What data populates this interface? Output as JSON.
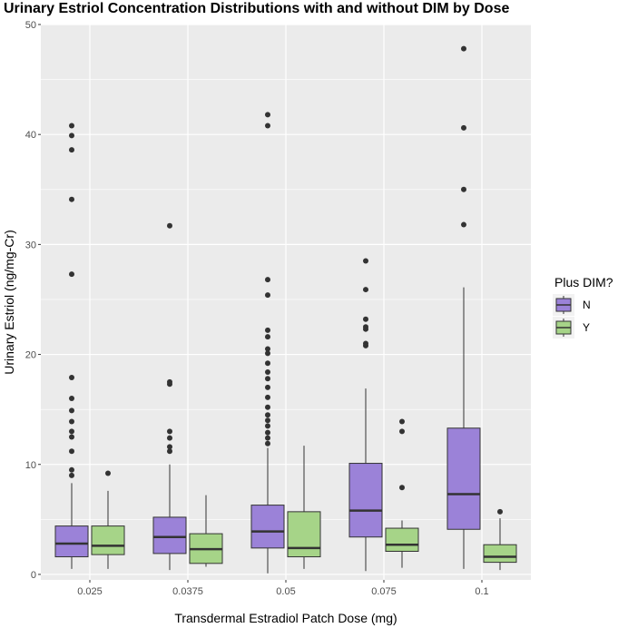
{
  "chart_data": {
    "type": "boxplot",
    "title": "Urinary Estriol Concentration Distributions with and without DIM by Dose",
    "xlabel": "Transdermal Estradiol Patch Dose (mg)",
    "ylabel": "Urinary Estriol (ng/mg-Cr)",
    "ylim": [
      -0.5,
      50
    ],
    "yticks": [
      0,
      10,
      20,
      30,
      40,
      50
    ],
    "categories": [
      "0.025",
      "0.0375",
      "0.05",
      "0.075",
      "0.1"
    ],
    "legend": {
      "title": "Plus DIM?",
      "position": "right",
      "entries": [
        "N",
        "Y"
      ]
    },
    "colors": {
      "N": "#9b82d8",
      "Y": "#a6d488",
      "panel": "#ebebeb",
      "grid": "#ffffff",
      "box_line": "#333333"
    },
    "series": [
      {
        "name": "N",
        "boxes": [
          {
            "category": "0.025",
            "lower": 0.5,
            "q1": 1.6,
            "median": 2.8,
            "q3": 4.4,
            "upper": 8.3,
            "outliers": [
              9.0,
              9.5,
              11.2,
              12.5,
              13.0,
              13.9,
              14.9,
              16.0,
              17.9,
              27.3,
              34.1,
              38.6,
              39.9,
              40.8
            ]
          },
          {
            "category": "0.0375",
            "lower": 0.4,
            "q1": 1.9,
            "median": 3.4,
            "q3": 5.2,
            "upper": 10.0,
            "outliers": [
              11.2,
              11.6,
              12.4,
              13.0,
              17.3,
              17.5,
              31.7
            ]
          },
          {
            "category": "0.05",
            "lower": 0.1,
            "q1": 2.4,
            "median": 3.9,
            "q3": 6.3,
            "upper": 11.5,
            "outliers": [
              11.9,
              12.4,
              12.9,
              13.5,
              14.0,
              14.5,
              15.2,
              16.1,
              17.0,
              17.8,
              18.4,
              19.2,
              20.1,
              20.5,
              21.6,
              22.2,
              25.4,
              26.8,
              40.8,
              41.8
            ]
          },
          {
            "category": "0.075",
            "lower": 0.3,
            "q1": 3.4,
            "median": 5.8,
            "q3": 10.1,
            "upper": 16.9,
            "outliers": [
              20.8,
              21.0,
              22.3,
              22.5,
              23.2,
              25.9,
              28.5
            ]
          },
          {
            "category": "0.1",
            "lower": 0.5,
            "q1": 4.1,
            "median": 7.3,
            "q3": 13.3,
            "upper": 26.1,
            "outliers": [
              31.8,
              35.0,
              40.6,
              47.8
            ]
          }
        ]
      },
      {
        "name": "Y",
        "boxes": [
          {
            "category": "0.025",
            "lower": 0.5,
            "q1": 1.8,
            "median": 2.6,
            "q3": 4.4,
            "upper": 7.6,
            "outliers": [
              9.2
            ]
          },
          {
            "category": "0.0375",
            "lower": 0.7,
            "q1": 1.0,
            "median": 2.3,
            "q3": 3.7,
            "upper": 7.2,
            "outliers": []
          },
          {
            "category": "0.05",
            "lower": 0.5,
            "q1": 1.6,
            "median": 2.4,
            "q3": 5.7,
            "upper": 11.7,
            "outliers": []
          },
          {
            "category": "0.075",
            "lower": 0.6,
            "q1": 2.1,
            "median": 2.7,
            "q3": 4.2,
            "upper": 4.9,
            "outliers": [
              7.9,
              13.0,
              13.9
            ]
          },
          {
            "category": "0.1",
            "lower": 0.4,
            "q1": 1.1,
            "median": 1.6,
            "q3": 2.7,
            "upper": 5.1,
            "outliers": [
              5.7
            ]
          }
        ]
      }
    ]
  }
}
